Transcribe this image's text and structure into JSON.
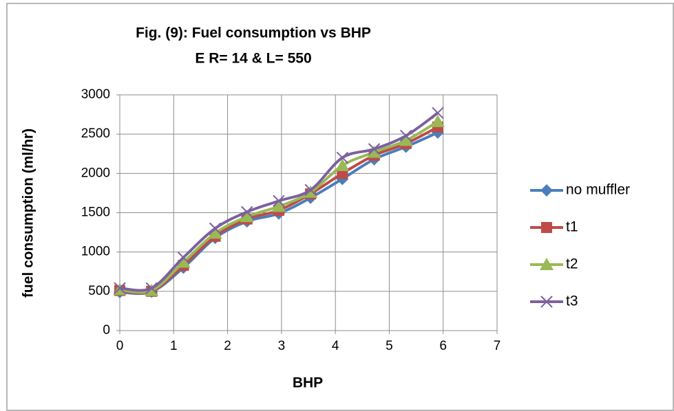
{
  "chart_data": {
    "type": "line",
    "title": "Fig. (9): Fuel consumption  vs BHP",
    "subtitle": "E R= 14 & L= 550",
    "x_label": "BHP",
    "y_label": "fuel consumption  (ml/hr)",
    "x": [
      0,
      0.59,
      1.18,
      1.77,
      2.36,
      2.95,
      3.54,
      4.13,
      4.72,
      5.31,
      5.9
    ],
    "series": [
      {
        "name": "no muffler",
        "color": "#4a7ebb",
        "marker": "diamond",
        "values": [
          490,
          495,
          800,
          1180,
          1390,
          1490,
          1690,
          1930,
          2180,
          2340,
          2520
        ]
      },
      {
        "name": "t1",
        "color": "#be4b48",
        "marker": "square",
        "values": [
          510,
          500,
          830,
          1200,
          1420,
          1530,
          1740,
          2000,
          2230,
          2380,
          2590
        ]
      },
      {
        "name": "t2",
        "color": "#98b954",
        "marker": "triangle",
        "values": [
          520,
          510,
          870,
          1240,
          1450,
          1580,
          1760,
          2100,
          2270,
          2420,
          2660
        ]
      },
      {
        "name": "t3",
        "color": "#7d60a0",
        "marker": "x",
        "values": [
          540,
          540,
          930,
          1300,
          1510,
          1650,
          1790,
          2200,
          2310,
          2480,
          2770
        ]
      }
    ],
    "xlim": [
      0,
      7
    ],
    "xticks": [
      0,
      1,
      2,
      3,
      4,
      5,
      6,
      7
    ],
    "ylim": [
      0,
      3000
    ],
    "yticks": [
      0,
      500,
      1000,
      1500,
      2000,
      2500,
      3000
    ],
    "grid": true,
    "legend": "right"
  }
}
